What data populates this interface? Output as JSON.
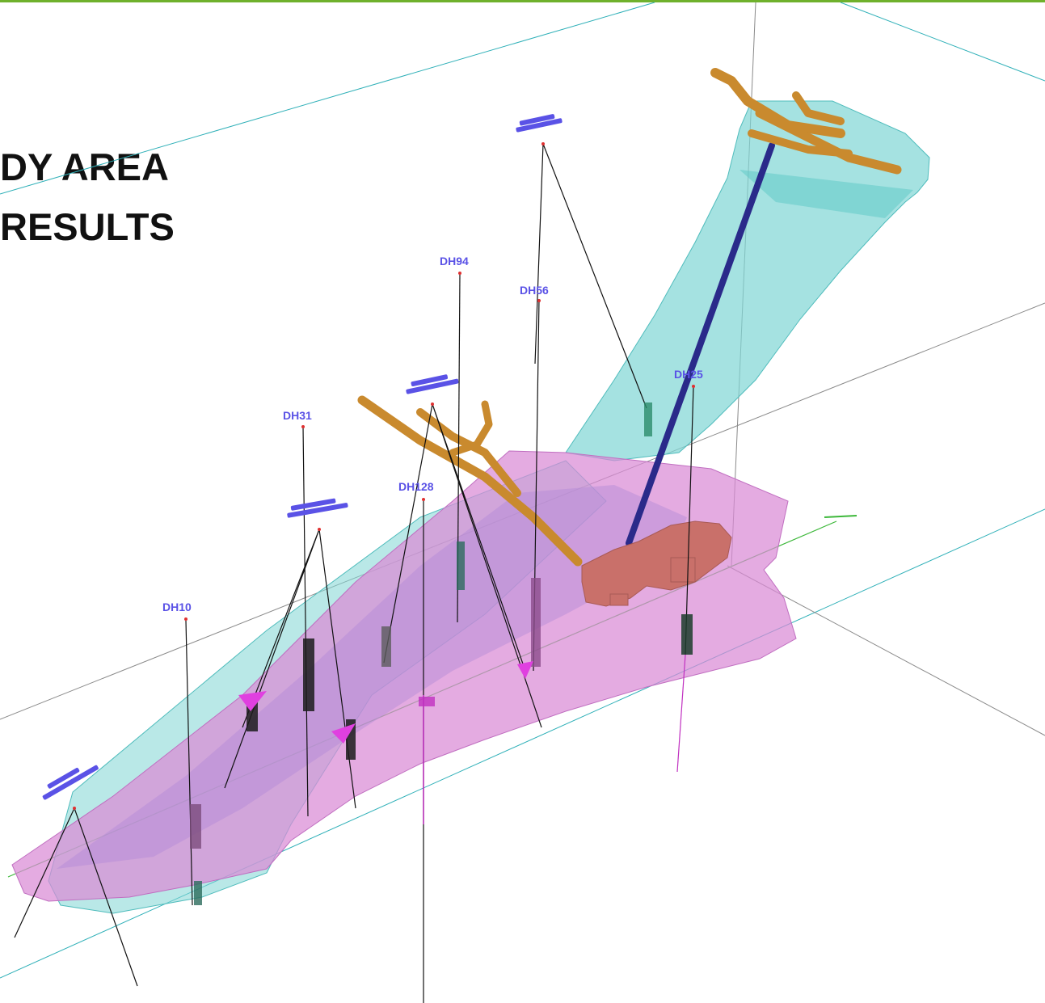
{
  "title": {
    "line1": "DY AREA",
    "line2": "RESULTS"
  },
  "drillholes": [
    {
      "id": "dh94",
      "label": "DH94"
    },
    {
      "id": "dh56",
      "label": "DH56"
    },
    {
      "id": "dh25",
      "label": "DH25"
    },
    {
      "id": "dh31",
      "label": "DH31"
    },
    {
      "id": "dh128",
      "label": "DH128"
    },
    {
      "id": "dh10",
      "label": "DH10"
    }
  ],
  "colors": {
    "accent_rule": "#6fb12c",
    "label_blue": "#5a52e6",
    "ore_body_magenta": "#d98ad6",
    "ore_body_cyan": "#7fd6d4",
    "workings_orange": "#c98a2e",
    "stopes_red": "#c9706a",
    "shaft_navy": "#2a2a8a",
    "grid_cyan": "#2fb0b8",
    "grid_grey": "#8a8a8a",
    "grid_green": "#3db83a"
  }
}
